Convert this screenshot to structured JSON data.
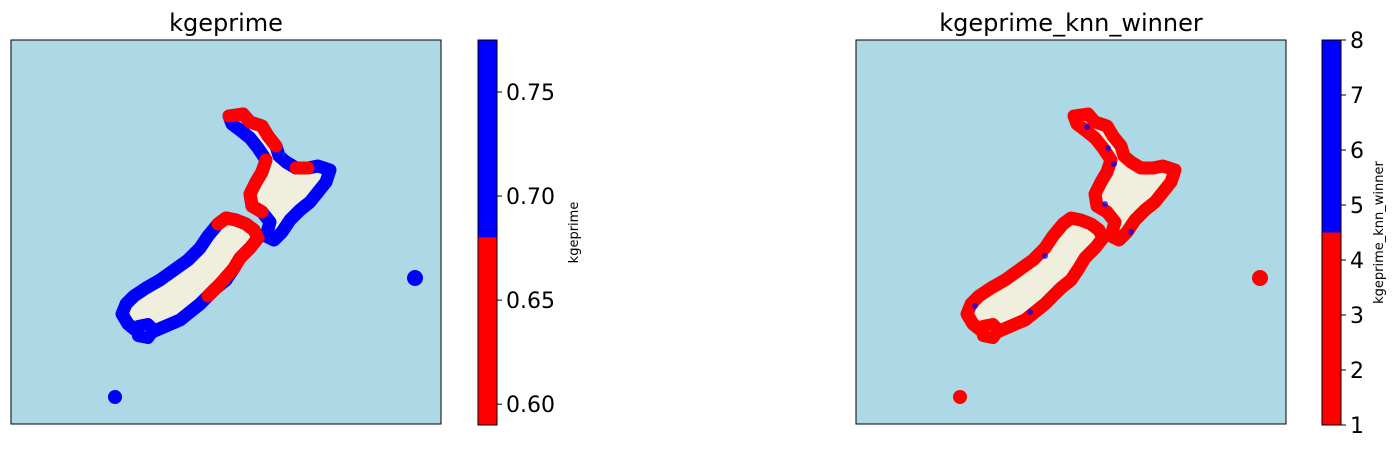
{
  "chart_data": [
    {
      "type": "map",
      "title": "kgeprime",
      "colorbar": {
        "label": "kgeprime",
        "range": [
          0.59,
          0.775
        ],
        "split": 0.68,
        "ticks": [
          {
            "value": 0.6,
            "label": "0.60"
          },
          {
            "value": 0.65,
            "label": "0.65"
          },
          {
            "value": 0.7,
            "label": "0.70"
          },
          {
            "value": 0.75,
            "label": "0.75"
          }
        ],
        "low_color": "#ff0000",
        "high_color": "#0000ff"
      },
      "ocean_color": "#add8e6",
      "land_color": "#f0eedc"
    },
    {
      "type": "map",
      "title": "kgeprime_knn_winner",
      "colorbar": {
        "label": "kgeprime_knn_winner",
        "range": [
          1,
          8
        ],
        "split": 4.5,
        "ticks": [
          {
            "value": 1,
            "label": "1"
          },
          {
            "value": 2,
            "label": "2"
          },
          {
            "value": 3,
            "label": "3"
          },
          {
            "value": 4,
            "label": "4"
          },
          {
            "value": 5,
            "label": "5"
          },
          {
            "value": 6,
            "label": "6"
          },
          {
            "value": 7,
            "label": "7"
          },
          {
            "value": 8,
            "label": "8"
          }
        ],
        "low_color": "#ff0000",
        "high_color": "#0000ff"
      },
      "ocean_color": "#add8e6",
      "land_color": "#f0eedc"
    }
  ]
}
